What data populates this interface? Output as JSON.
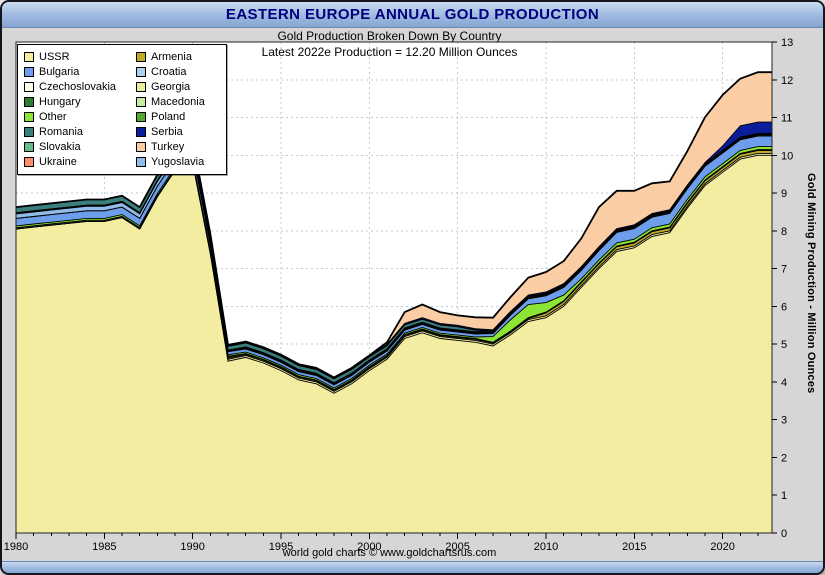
{
  "window": {
    "title": "EASTERN EUROPE ANNUAL GOLD PRODUCTION"
  },
  "header": {
    "subtitle1": "Gold Production Broken Down By Country",
    "subtitle2": "Latest 2022e Production = 12.20 Million Ounces"
  },
  "y_axis": {
    "title": "Gold Mining Production - Million Ounces"
  },
  "footer": {
    "credit": "world gold charts © www.goldchartsrus.com"
  },
  "ui_colors": {
    "title_text": "#00007E",
    "titlebar_gradient_top": "#CADBF1",
    "titlebar_gradient_bottom": "#86A6D2",
    "chart_margin_bg": "#D6D6D6",
    "plot_bg": "#FFFFFF",
    "gridline": "#BCC9DB",
    "outline": "#000000"
  },
  "chart_data": {
    "type": "area",
    "stacked": true,
    "title": "Gold Production Broken Down By Country",
    "annotation": "Latest 2022e Production = 12.20 Million Ounces",
    "x_start": 1980,
    "x_end": 2022,
    "x_ticks": [
      1980,
      1985,
      1990,
      1995,
      2000,
      2005,
      2010,
      2015,
      2020
    ],
    "ylim": [
      0,
      13
    ],
    "y_ticks": [
      0,
      1,
      2,
      3,
      4,
      5,
      6,
      7,
      8,
      9,
      10,
      11,
      12,
      13
    ],
    "grid": true,
    "legend_position": "top-left",
    "legend_display": [
      "USSR",
      "Armenia",
      "Bulgaria",
      "Croatia",
      "Czechoslovakia",
      "Georgia",
      "Hungary",
      "Macedonia",
      "Other",
      "Poland",
      "Romania",
      "Serbia",
      "Slovakia",
      "Turkey",
      "Ukraine",
      "Yugoslavia"
    ],
    "series": [
      {
        "name": "USSR",
        "color": "#F3EDA1",
        "values": [
          8.05,
          8.1,
          8.15,
          8.2,
          8.25,
          8.25,
          8.35,
          8.05,
          8.9,
          9.6,
          9.8,
          7.4,
          4.55,
          4.65,
          4.5,
          4.3,
          4.05,
          3.95,
          3.7,
          3.95,
          4.3,
          4.6,
          5.15,
          5.3,
          5.15,
          5.1,
          5.05,
          4.95,
          5.25,
          5.6,
          5.7,
          6.0,
          6.5,
          7.0,
          7.45,
          7.55,
          7.85,
          7.95,
          8.6,
          9.2,
          9.55,
          9.9,
          10.0
        ]
      },
      {
        "name": "Georgia",
        "color": "#E9EC9B",
        "values": [
          0,
          0,
          0,
          0,
          0,
          0,
          0,
          0,
          0,
          0,
          0,
          0,
          0.05,
          0.05,
          0.05,
          0.05,
          0.05,
          0.05,
          0.05,
          0.05,
          0.05,
          0.05,
          0.05,
          0.05,
          0.05,
          0.05,
          0.05,
          0.05,
          0.05,
          0.05,
          0.05,
          0.05,
          0.05,
          0.05,
          0.05,
          0.05,
          0.05,
          0.05,
          0.05,
          0.05,
          0.05,
          0.05,
          0.05
        ]
      },
      {
        "name": "Armenia",
        "color": "#BFA928",
        "values": [
          0,
          0,
          0,
          0,
          0,
          0,
          0,
          0,
          0,
          0,
          0,
          0,
          0.03,
          0.03,
          0.03,
          0.03,
          0.03,
          0.03,
          0.03,
          0.03,
          0.03,
          0.03,
          0.03,
          0.03,
          0.03,
          0.03,
          0.03,
          0.03,
          0.03,
          0.03,
          0.08,
          0.08,
          0.08,
          0.08,
          0.08,
          0.08,
          0.08,
          0.08,
          0.08,
          0.08,
          0.08,
          0.08,
          0.08
        ]
      },
      {
        "name": "Czechoslovakia",
        "color": "#FDFDEB",
        "values": [
          0.03,
          0.03,
          0.03,
          0.03,
          0.03,
          0.03,
          0.03,
          0.03,
          0.03,
          0.03,
          0.03,
          0.03,
          0.03,
          0,
          0,
          0,
          0,
          0,
          0,
          0,
          0,
          0,
          0,
          0,
          0,
          0,
          0,
          0,
          0,
          0,
          0,
          0,
          0,
          0,
          0,
          0,
          0,
          0,
          0,
          0,
          0,
          0,
          0
        ]
      },
      {
        "name": "Macedonia",
        "color": "#C6EDA4",
        "values": [
          0,
          0,
          0,
          0,
          0,
          0,
          0,
          0,
          0,
          0,
          0,
          0,
          0.02,
          0.02,
          0.02,
          0.02,
          0.02,
          0.02,
          0.02,
          0.02,
          0.02,
          0.02,
          0.02,
          0.02,
          0.02,
          0.02,
          0.02,
          0.02,
          0.02,
          0.02,
          0.02,
          0.02,
          0.02,
          0.02,
          0.02,
          0.02,
          0.02,
          0.02,
          0.02,
          0.02,
          0.02,
          0.02,
          0.02
        ]
      },
      {
        "name": "Other",
        "color": "#8CE534",
        "values": [
          0.05,
          0.05,
          0.05,
          0.05,
          0.05,
          0.05,
          0.05,
          0.05,
          0.05,
          0.05,
          0.05,
          0.05,
          0.04,
          0.04,
          0.04,
          0.04,
          0.04,
          0.04,
          0.04,
          0.04,
          0.04,
          0.04,
          0.04,
          0.04,
          0.04,
          0.04,
          0.04,
          0.15,
          0.3,
          0.35,
          0.25,
          0.15,
          0.08,
          0.08,
          0.08,
          0.08,
          0.08,
          0.08,
          0.08,
          0.08,
          0.08,
          0.08,
          0.08
        ]
      },
      {
        "name": "Bulgaria",
        "color": "#6D9EEB",
        "values": [
          0.2,
          0.2,
          0.2,
          0.2,
          0.2,
          0.2,
          0.2,
          0.2,
          0.2,
          0.2,
          0.2,
          0.15,
          0.08,
          0.08,
          0.08,
          0.08,
          0.08,
          0.08,
          0.08,
          0.08,
          0.08,
          0.08,
          0.08,
          0.08,
          0.08,
          0.08,
          0.08,
          0.08,
          0.12,
          0.15,
          0.18,
          0.2,
          0.22,
          0.25,
          0.28,
          0.28,
          0.28,
          0.28,
          0.28,
          0.28,
          0.28,
          0.28,
          0.28
        ]
      },
      {
        "name": "Croatia",
        "color": "#A9CFF2",
        "values": [
          0,
          0,
          0,
          0,
          0,
          0,
          0,
          0,
          0,
          0,
          0,
          0,
          0.01,
          0.01,
          0.01,
          0.01,
          0.01,
          0.01,
          0.01,
          0.01,
          0.01,
          0.01,
          0.01,
          0.01,
          0.01,
          0.01,
          0.01,
          0.01,
          0.01,
          0.01,
          0.01,
          0.01,
          0.01,
          0.01,
          0.01,
          0.01,
          0.01,
          0.01,
          0.01,
          0.01,
          0.01,
          0.01,
          0.01
        ]
      },
      {
        "name": "Yugoslavia",
        "color": "#8FBCE8",
        "values": [
          0.12,
          0.12,
          0.12,
          0.12,
          0.12,
          0.12,
          0.12,
          0.12,
          0.12,
          0.12,
          0.12,
          0.12,
          0,
          0,
          0,
          0,
          0,
          0,
          0,
          0,
          0,
          0,
          0,
          0,
          0,
          0,
          0,
          0,
          0,
          0,
          0,
          0,
          0,
          0,
          0,
          0,
          0,
          0,
          0,
          0,
          0,
          0,
          0
        ]
      },
      {
        "name": "Poland",
        "color": "#56A632",
        "values": [
          0.02,
          0.02,
          0.02,
          0.02,
          0.02,
          0.02,
          0.02,
          0.02,
          0.02,
          0.02,
          0.02,
          0.02,
          0.02,
          0.02,
          0.02,
          0.02,
          0.02,
          0.02,
          0.02,
          0.02,
          0.02,
          0.02,
          0.02,
          0.02,
          0.02,
          0.02,
          0.02,
          0.02,
          0.02,
          0.02,
          0.02,
          0.02,
          0.02,
          0.02,
          0.02,
          0.02,
          0.02,
          0.02,
          0.02,
          0.02,
          0.02,
          0.02,
          0.02
        ]
      },
      {
        "name": "Hungary",
        "color": "#2E7D32",
        "values": [
          0.01,
          0.01,
          0.01,
          0.01,
          0.01,
          0.01,
          0.01,
          0.01,
          0.01,
          0.01,
          0.01,
          0.01,
          0.01,
          0.01,
          0.01,
          0.01,
          0.01,
          0.01,
          0.01,
          0.01,
          0.01,
          0.01,
          0.01,
          0.01,
          0.01,
          0.01,
          0.01,
          0.01,
          0.01,
          0.01,
          0.01,
          0.01,
          0.01,
          0.01,
          0.01,
          0.01,
          0.01,
          0.01,
          0.01,
          0.01,
          0.01,
          0.01,
          0.01
        ]
      },
      {
        "name": "Slovakia",
        "color": "#63BC8C",
        "values": [
          0,
          0,
          0,
          0,
          0,
          0,
          0,
          0,
          0,
          0,
          0,
          0,
          0,
          0.02,
          0.02,
          0.02,
          0.02,
          0.02,
          0.02,
          0.02,
          0.02,
          0.02,
          0.02,
          0.02,
          0.02,
          0.02,
          0.02,
          0.02,
          0.02,
          0.02,
          0.02,
          0.02,
          0.02,
          0.02,
          0.02,
          0.02,
          0.02,
          0.02,
          0.02,
          0.02,
          0.02,
          0.02,
          0.02
        ]
      },
      {
        "name": "Romania",
        "color": "#3B7E7E",
        "values": [
          0.15,
          0.15,
          0.15,
          0.15,
          0.15,
          0.15,
          0.15,
          0.15,
          0.15,
          0.15,
          0.15,
          0.15,
          0.1,
          0.1,
          0.1,
          0.1,
          0.1,
          0.1,
          0.1,
          0.1,
          0.08,
          0.08,
          0.08,
          0.08,
          0.08,
          0.08,
          0.04,
          0,
          0,
          0,
          0,
          0,
          0,
          0,
          0,
          0,
          0,
          0,
          0,
          0,
          0,
          0,
          0
        ]
      },
      {
        "name": "Ukraine",
        "color": "#FB8D6B",
        "values": [
          0,
          0,
          0,
          0,
          0,
          0,
          0,
          0,
          0,
          0,
          0,
          0,
          0.01,
          0.01,
          0.01,
          0.01,
          0.01,
          0.01,
          0.01,
          0.01,
          0.01,
          0.01,
          0.01,
          0.01,
          0.01,
          0.01,
          0.01,
          0.01,
          0.01,
          0.01,
          0.01,
          0.01,
          0.01,
          0.01,
          0.01,
          0.01,
          0.01,
          0.01,
          0.01,
          0.01,
          0.01,
          0.01,
          0.01
        ]
      },
      {
        "name": "Serbia",
        "color": "#0A1E9C",
        "values": [
          0,
          0,
          0,
          0,
          0,
          0,
          0,
          0,
          0,
          0,
          0,
          0,
          0.03,
          0.03,
          0.03,
          0.03,
          0.03,
          0.03,
          0.03,
          0.03,
          0.03,
          0.03,
          0.03,
          0.03,
          0.03,
          0.03,
          0.03,
          0.03,
          0.03,
          0.03,
          0.03,
          0.03,
          0.03,
          0.03,
          0.03,
          0.03,
          0.03,
          0.03,
          0.03,
          0.03,
          0.12,
          0.3,
          0.3
        ]
      },
      {
        "name": "Turkey",
        "color": "#FBCDA4",
        "values": [
          0,
          0,
          0,
          0,
          0,
          0,
          0,
          0,
          0,
          0,
          0,
          0,
          0,
          0,
          0,
          0,
          0,
          0,
          0,
          0,
          0,
          0.05,
          0.3,
          0.35,
          0.3,
          0.26,
          0.3,
          0.32,
          0.38,
          0.46,
          0.53,
          0.6,
          0.75,
          1.05,
          1.0,
          0.9,
          0.8,
          0.75,
          0.9,
          1.2,
          1.35,
          1.25,
          1.32
        ]
      }
    ]
  }
}
